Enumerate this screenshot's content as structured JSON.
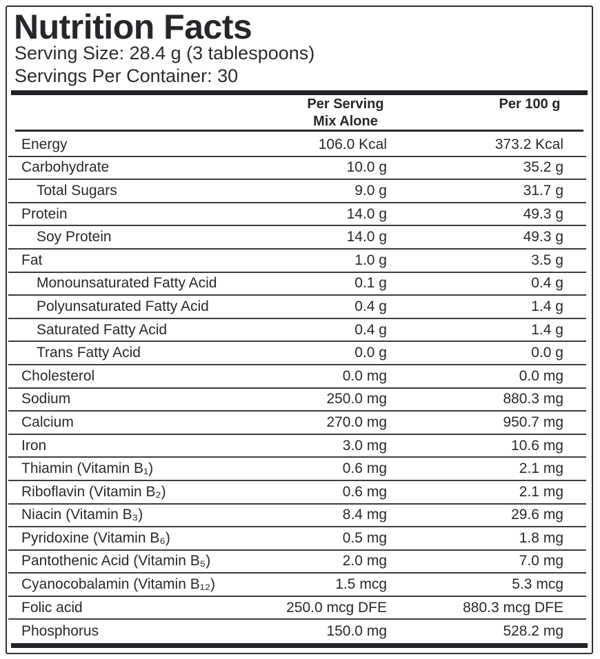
{
  "title": "Nutrition Facts",
  "serving_info": {
    "serving_size": "Serving Size: 28.4 g (3 tablespoons)",
    "servings_per_container": "Servings Per Container: 30"
  },
  "table": {
    "columns": {
      "per_serving_line1": "Per Serving",
      "per_serving_line2": "Mix Alone",
      "per_100g": "Per 100 g"
    },
    "rows": [
      {
        "name": "Energy",
        "indent": false,
        "per_serving": "106.0 Kcal",
        "per_100g": "373.2 Kcal"
      },
      {
        "name": "Carbohydrate",
        "indent": false,
        "per_serving": "10.0 g",
        "per_100g": "35.2 g"
      },
      {
        "name": "Total Sugars",
        "indent": true,
        "per_serving": "9.0 g",
        "per_100g": "31.7 g"
      },
      {
        "name": "Protein",
        "indent": false,
        "per_serving": "14.0 g",
        "per_100g": "49.3 g"
      },
      {
        "name": "Soy Protein",
        "indent": true,
        "per_serving": "14.0 g",
        "per_100g": "49.3 g"
      },
      {
        "name": "Fat",
        "indent": false,
        "per_serving": "1.0 g",
        "per_100g": "3.5 g"
      },
      {
        "name": "Monounsaturated Fatty Acid",
        "indent": true,
        "per_serving": "0.1 g",
        "per_100g": "0.4 g"
      },
      {
        "name": "Polyunsaturated Fatty Acid",
        "indent": true,
        "per_serving": "0.4 g",
        "per_100g": "1.4 g"
      },
      {
        "name": "Saturated Fatty Acid",
        "indent": true,
        "per_serving": "0.4 g",
        "per_100g": "1.4 g"
      },
      {
        "name": "Trans Fatty Acid",
        "indent": true,
        "per_serving": "0.0 g",
        "per_100g": "0.0 g"
      },
      {
        "name": "Cholesterol",
        "indent": false,
        "per_serving": "0.0 mg",
        "per_100g": "0.0 mg"
      },
      {
        "name": "Sodium",
        "indent": false,
        "per_serving": "250.0 mg",
        "per_100g": "880.3 mg"
      },
      {
        "name": "Calcium",
        "indent": false,
        "per_serving": "270.0 mg",
        "per_100g": "950.7 mg"
      },
      {
        "name": "Iron",
        "indent": false,
        "per_serving": "3.0 mg",
        "per_100g": "10.6 mg"
      },
      {
        "name": "Thiamin (Vitamin B₁)",
        "indent": false,
        "per_serving": "0.6 mg",
        "per_100g": "2.1 mg"
      },
      {
        "name": "Riboflavin (Vitamin B₂)",
        "indent": false,
        "per_serving": "0.6 mg",
        "per_100g": "2.1 mg"
      },
      {
        "name": "Niacin (Vitamin B₃)",
        "indent": false,
        "per_serving": "8.4 mg",
        "per_100g": "29.6 mg"
      },
      {
        "name": "Pyridoxine (Vitamin B₆)",
        "indent": false,
        "per_serving": "0.5 mg",
        "per_100g": "1.8 mg"
      },
      {
        "name": "Pantothenic Acid (Vitamin B₅)",
        "indent": false,
        "per_serving": "2.0 mg",
        "per_100g": "7.0 mg"
      },
      {
        "name": "Cyanocobalamin (Vitamin B₁₂)",
        "indent": false,
        "per_serving": "1.5 mcg",
        "per_100g": "5.3 mcg"
      },
      {
        "name": "Folic acid",
        "indent": false,
        "per_serving": "250.0 mcg DFE",
        "per_100g": "880.3 mcg DFE"
      },
      {
        "name": "Phosphorus",
        "indent": false,
        "per_serving": "150.0 mg",
        "per_100g": "528.2 mg"
      }
    ]
  },
  "colors": {
    "text": "#27282c",
    "border": "#2f3033",
    "thick_bar": "#202125",
    "separator": "#3c3d41",
    "background": "#ffffff"
  }
}
